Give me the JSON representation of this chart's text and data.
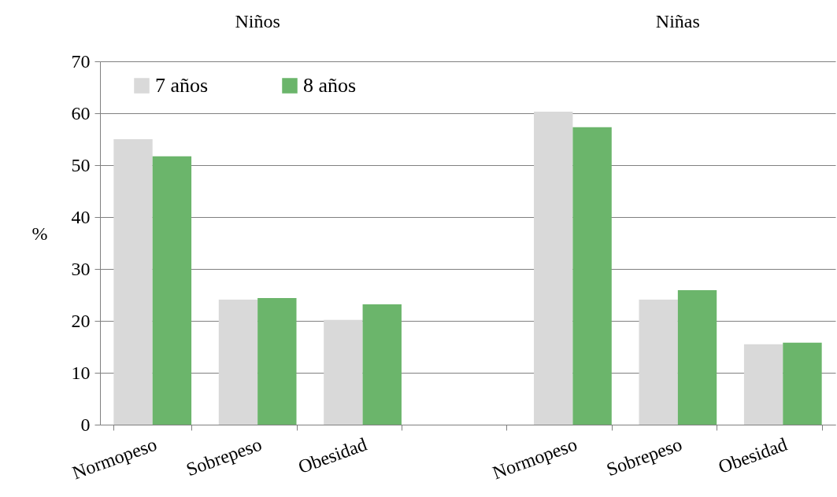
{
  "chart_data": {
    "type": "bar",
    "categories": [
      "Normopeso",
      "Sobrepeso",
      "Obesidad",
      null,
      "Normopeso",
      "Sobrepeso",
      "Obesidad"
    ],
    "series": [
      {
        "name": "7 años",
        "color": "#d9d9d9",
        "values": [
          55.0,
          24.1,
          20.2,
          null,
          60.3,
          24.1,
          15.5
        ]
      },
      {
        "name": "8 años",
        "color": "#6bb56b",
        "values": [
          51.7,
          24.4,
          23.2,
          null,
          57.3,
          25.9,
          15.8
        ]
      }
    ],
    "ylabel": "%",
    "ylim": [
      0,
      70
    ],
    "yticks": [
      0,
      10,
      20,
      30,
      40,
      50,
      60,
      70
    ],
    "grid": "y",
    "legend": "top left",
    "annotations": [
      "Niños",
      "Niñas"
    ]
  }
}
